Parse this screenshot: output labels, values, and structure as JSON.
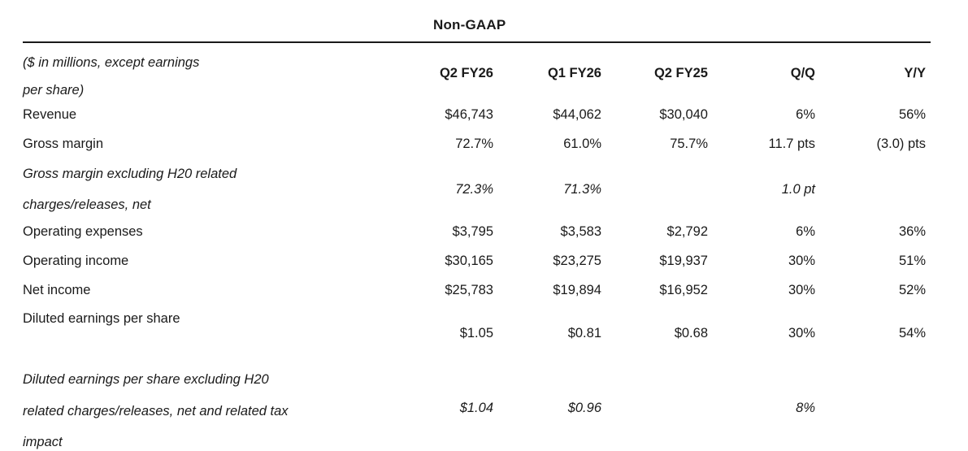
{
  "title": "Non-GAAP",
  "table": {
    "unit_note_line1": "($ in millions, except earnings",
    "unit_note_line2": "per share)",
    "columns": [
      "Q2 FY26",
      "Q1 FY26",
      "Q2 FY25",
      "Q/Q",
      "Y/Y"
    ],
    "rows": [
      {
        "label_lines": [
          "Revenue"
        ],
        "italic": false,
        "values": [
          "$46,743",
          "$44,062",
          "$30,040",
          "6%",
          "56%"
        ]
      },
      {
        "label_lines": [
          "Gross margin"
        ],
        "italic": false,
        "values": [
          "72.7%",
          "61.0%",
          "75.7%",
          "11.7 pts",
          "(3.0) pts"
        ]
      },
      {
        "label_lines": [
          "Gross margin excluding H20 related",
          "charges/releases, net"
        ],
        "italic": true,
        "values": [
          "72.3%",
          "71.3%",
          "",
          "1.0 pt",
          ""
        ]
      },
      {
        "label_lines": [
          "Operating expenses"
        ],
        "italic": false,
        "values": [
          "$3,795",
          "$3,583",
          "$2,792",
          "6%",
          "36%"
        ]
      },
      {
        "label_lines": [
          "Operating income"
        ],
        "italic": false,
        "values": [
          "$30,165",
          "$23,275",
          "$19,937",
          "30%",
          "51%"
        ]
      },
      {
        "label_lines": [
          "Net income"
        ],
        "italic": false,
        "values": [
          "$25,783",
          "$19,894",
          "$16,952",
          "30%",
          "52%"
        ]
      },
      {
        "label_lines": [
          "Diluted earnings per share"
        ],
        "italic": false,
        "values": [
          "$1.05",
          "$0.81",
          "$0.68",
          "30%",
          "54%"
        ]
      },
      {
        "label_lines": [
          "Diluted earnings per share excluding H20",
          "related charges/releases, net and related tax",
          "impact"
        ],
        "italic": true,
        "values": [
          "$1.04",
          "$0.96",
          "",
          "8%",
          ""
        ]
      }
    ]
  },
  "colors": {
    "text": "#1a1a1a",
    "background": "#ffffff",
    "rule": "#1a1a1a"
  }
}
